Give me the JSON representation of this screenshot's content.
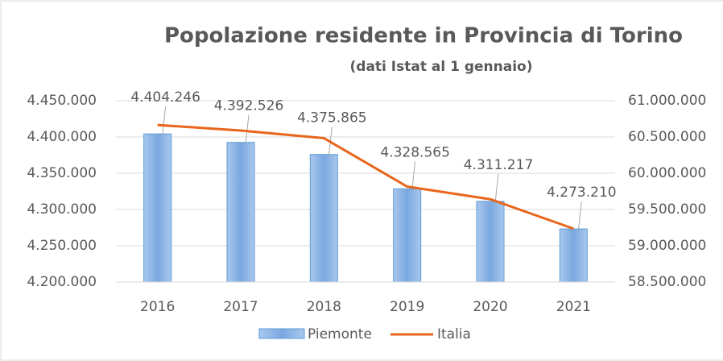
{
  "chart_data": {
    "type": "bar_line",
    "title": "Popolazione residente in Provincia di Torino",
    "subtitle": "(dati Istat al 1 gennaio)",
    "categories": [
      "2016",
      "2017",
      "2018",
      "2019",
      "2020",
      "2021"
    ],
    "series": [
      {
        "name": "Piemonte",
        "type": "bar",
        "color": "#8db4e2",
        "values": [
          4404246,
          4392526,
          4375865,
          4328565,
          4311217,
          4273210
        ],
        "value_labels": [
          "4.404.246",
          "4.392.526",
          "4.375.865",
          "4.328.565",
          "4.311.217",
          "4.273.210"
        ]
      },
      {
        "name": "Italia",
        "type": "line",
        "axis": "y2",
        "color": "#e8651b",
        "values": [
          60665551,
          60589445,
          60483973,
          59816673,
          59641488,
          59236213
        ]
      }
    ],
    "ylim": [
      4200000,
      4450000
    ],
    "yticks": [
      {
        "value": 4200000,
        "label": "4.200.000"
      },
      {
        "value": 4250000,
        "label": "4.250.000"
      },
      {
        "value": 4300000,
        "label": "4.300.000"
      },
      {
        "value": 4350000,
        "label": "4.350.000"
      },
      {
        "value": 4400000,
        "label": "4.400.000"
      },
      {
        "value": 4450000,
        "label": "4.450.000"
      }
    ],
    "y2lim": [
      58500000,
      61000000
    ],
    "y2ticks": [
      {
        "value": 58500000,
        "label": "58.500.000"
      },
      {
        "value": 59000000,
        "label": "59.000.000"
      },
      {
        "value": 59500000,
        "label": "59.500.000"
      },
      {
        "value": 60000000,
        "label": "60.000.000"
      },
      {
        "value": 60500000,
        "label": "60.500.000"
      },
      {
        "value": 61000000,
        "label": "61.000.000"
      }
    ],
    "grid": true,
    "legend": "bottom"
  }
}
